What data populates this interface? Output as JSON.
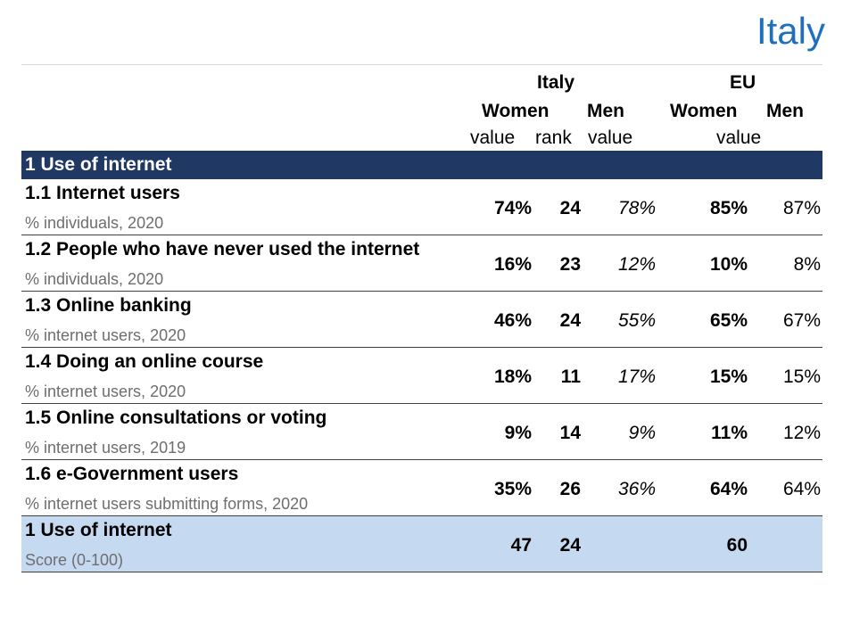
{
  "title": "Italy",
  "header": {
    "italy": "Italy",
    "eu": "EU",
    "women": "Women",
    "men": "Men",
    "eu_women": "Women",
    "eu_men": "Men",
    "value": "value",
    "rank": "rank",
    "men_value": "value",
    "eu_value": "value"
  },
  "section": "1 Use of internet",
  "rows": [
    {
      "label": "1.1 Internet users",
      "sub": "% individuals, 2020",
      "women_value": "74%",
      "women_rank": "24",
      "men_value": "78%",
      "eu_women": "85%",
      "eu_men": "87%"
    },
    {
      "label": "1.2 People who have never used the internet",
      "sub": "% individuals, 2020",
      "women_value": "16%",
      "women_rank": "23",
      "men_value": "12%",
      "eu_women": "10%",
      "eu_men": "8%"
    },
    {
      "label": "1.3 Online banking",
      "sub": "% internet users, 2020",
      "women_value": "46%",
      "women_rank": "24",
      "men_value": "55%",
      "eu_women": "65%",
      "eu_men": "67%"
    },
    {
      "label": "1.4 Doing an online course",
      "sub": "% internet users, 2020",
      "women_value": "18%",
      "women_rank": "11",
      "men_value": "17%",
      "eu_women": "15%",
      "eu_men": "15%"
    },
    {
      "label": "1.5 Online consultations or voting",
      "sub": "% internet users, 2019",
      "women_value": "9%",
      "women_rank": "14",
      "men_value": "9%",
      "eu_women": "11%",
      "eu_men": "12%"
    },
    {
      "label": "1.6 e-Government users",
      "sub": "% internet users submitting forms, 2020",
      "women_value": "35%",
      "women_rank": "26",
      "men_value": "36%",
      "eu_women": "64%",
      "eu_men": "64%"
    }
  ],
  "score": {
    "label": "1 Use of internet",
    "sub": "Score (0-100)",
    "women_value": "47",
    "women_rank": "24",
    "eu_women": "60"
  },
  "colors": {
    "title": "#1f6fbf",
    "section_bar": "#1f3864",
    "score_row": "#c5d9f1"
  }
}
